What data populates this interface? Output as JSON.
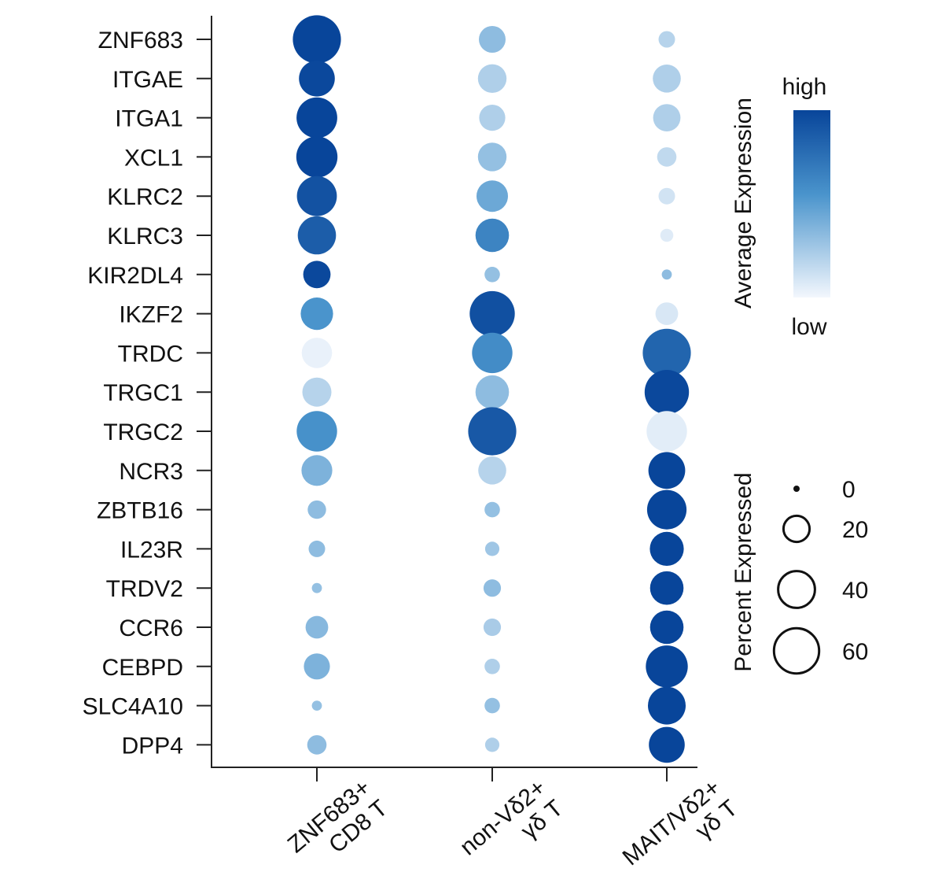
{
  "chart_data": {
    "type": "scatter",
    "subtype": "dot-plot",
    "title": "",
    "genes": [
      "ZNF683",
      "ITGAE",
      "ITGA1",
      "XCL1",
      "KLRC2",
      "KLRC3",
      "KIR2DL4",
      "IKZF2",
      "TRDC",
      "TRGC1",
      "TRGC2",
      "NCR3",
      "ZBTB16",
      "IL23R",
      "TRDV2",
      "CCR6",
      "CEBPD",
      "SLC4A10",
      "DPP4"
    ],
    "categories": [
      {
        "line1": "ZNF683+",
        "line2": "CD8 T"
      },
      {
        "line1": "non-Vδ2+",
        "line2": "γδ T"
      },
      {
        "line1": "MAIT/Vδ2+",
        "line2": "γδ T"
      }
    ],
    "series": [
      {
        "category_index": 0,
        "percent_expressed": [
          68,
          38,
          49,
          50,
          47,
          43,
          22,
          31,
          27,
          25,
          48,
          28,
          10,
          8,
          3,
          15,
          20,
          3,
          11
        ],
        "average_expression": [
          1.0,
          0.98,
          1.0,
          1.0,
          0.92,
          0.85,
          0.98,
          0.5,
          0.03,
          0.18,
          0.52,
          0.35,
          0.3,
          0.3,
          0.28,
          0.32,
          0.35,
          0.28,
          0.3
        ]
      },
      {
        "category_index": 1,
        "percent_expressed": [
          21,
          24,
          20,
          24,
          29,
          33,
          7,
          60,
          48,
          33,
          68,
          23,
          7,
          6,
          9,
          9,
          7,
          7,
          6
        ],
        "average_expression": [
          0.3,
          0.2,
          0.2,
          0.28,
          0.4,
          0.6,
          0.28,
          0.93,
          0.55,
          0.3,
          0.88,
          0.18,
          0.28,
          0.25,
          0.3,
          0.22,
          0.2,
          0.28,
          0.2
        ]
      },
      {
        "category_index": 2,
        "percent_expressed": [
          8,
          23,
          22,
          11,
          8,
          5,
          3,
          15,
          68,
          58,
          48,
          40,
          46,
          34,
          33,
          33,
          52,
          42,
          38
        ],
        "average_expression": [
          0.18,
          0.2,
          0.2,
          0.15,
          0.1,
          0.06,
          0.3,
          0.08,
          0.8,
          0.98,
          0.05,
          1.0,
          1.0,
          1.0,
          1.0,
          1.0,
          1.0,
          1.0,
          1.0
        ]
      }
    ],
    "legend_color": {
      "title": "Average Expression",
      "high": "high",
      "low": "low",
      "color_high": "#08459a",
      "color_low": "#f3f7fd"
    },
    "legend_size": {
      "title": "Percent Expressed",
      "values": [
        0,
        20,
        40,
        60
      ],
      "labels": [
        "0",
        "20",
        "40",
        "60"
      ]
    }
  }
}
